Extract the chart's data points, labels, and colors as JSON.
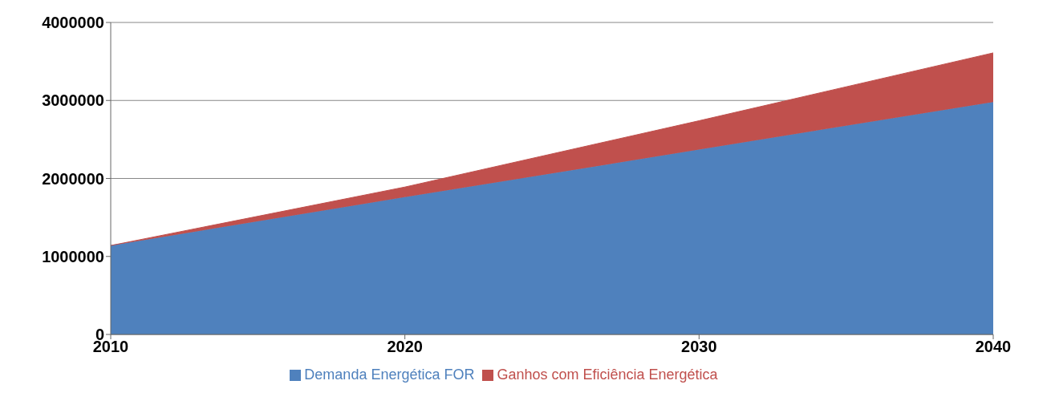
{
  "chart_data": {
    "type": "area",
    "stacked": true,
    "categories": [
      "2010",
      "2020",
      "2030",
      "2040"
    ],
    "series": [
      {
        "name": "Demanda Energética FOR",
        "color": "#4f81bd",
        "values": [
          1140000,
          1760000,
          2370000,
          2980000
        ]
      },
      {
        "name": "Ganhos com Eficiência Energética",
        "color": "#c0504d",
        "values": [
          0,
          130000,
          370000,
          630000
        ]
      }
    ],
    "ylim": [
      0,
      4000000
    ],
    "yticks": [
      0,
      1000000,
      2000000,
      3000000,
      4000000
    ],
    "grid": "y",
    "legend": "bottom"
  }
}
